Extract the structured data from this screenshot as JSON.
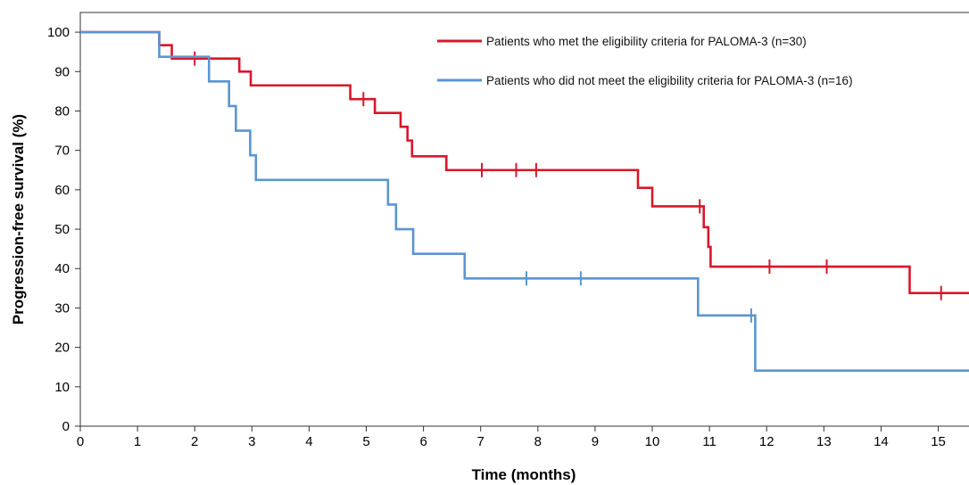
{
  "chart_data": {
    "type": "line",
    "xlabel": "Time (months)",
    "ylabel": "Progression-free survival (%)",
    "xlim": [
      0,
      15.6
    ],
    "ylim": [
      0,
      105
    ],
    "x_ticks": [
      0,
      1,
      2,
      3,
      4,
      5,
      6,
      7,
      8,
      9,
      10,
      11,
      12,
      13,
      14,
      15
    ],
    "y_ticks": [
      0,
      10,
      20,
      30,
      40,
      50,
      60,
      70,
      80,
      90,
      100
    ],
    "grid": false,
    "legend_position": "top-right",
    "series": [
      {
        "name": "Patients who met the eligibility criteria for PALOMA-3 (n=30)",
        "color": "#d7182a",
        "step_points": [
          [
            0,
            100
          ],
          [
            1.38,
            96.7
          ],
          [
            1.6,
            93.3
          ],
          [
            2.78,
            90
          ],
          [
            2.98,
            86.5
          ],
          [
            4.72,
            83
          ],
          [
            5.15,
            79.5
          ],
          [
            5.6,
            76
          ],
          [
            5.72,
            72.5
          ],
          [
            5.8,
            68.5
          ],
          [
            6.4,
            65
          ],
          [
            9.75,
            60.5
          ],
          [
            10,
            55.8
          ],
          [
            10.9,
            50.5
          ],
          [
            10.98,
            45.5
          ],
          [
            11.02,
            40.5
          ],
          [
            14.5,
            33.8
          ],
          [
            15.6,
            33.8
          ]
        ],
        "censor_x": [
          2,
          4.95,
          7.02,
          7.62,
          7.97,
          10.83,
          12.05,
          13.05,
          15.05
        ]
      },
      {
        "name": "Patients who did not meet the eligibility criteria for PALOMA-3 (n=16)",
        "color": "#5b95d2",
        "step_points": [
          [
            0,
            100
          ],
          [
            1.38,
            93.75
          ],
          [
            2.25,
            87.5
          ],
          [
            2.6,
            81.25
          ],
          [
            2.72,
            75
          ],
          [
            2.97,
            68.75
          ],
          [
            3.07,
            62.5
          ],
          [
            5.38,
            56.25
          ],
          [
            5.52,
            50
          ],
          [
            5.82,
            43.75
          ],
          [
            6.72,
            37.5
          ],
          [
            10.8,
            28.1
          ],
          [
            11.8,
            14.1
          ],
          [
            15.6,
            14.1
          ]
        ],
        "censor_x": [
          7.8,
          8.75,
          11.73
        ]
      }
    ]
  }
}
